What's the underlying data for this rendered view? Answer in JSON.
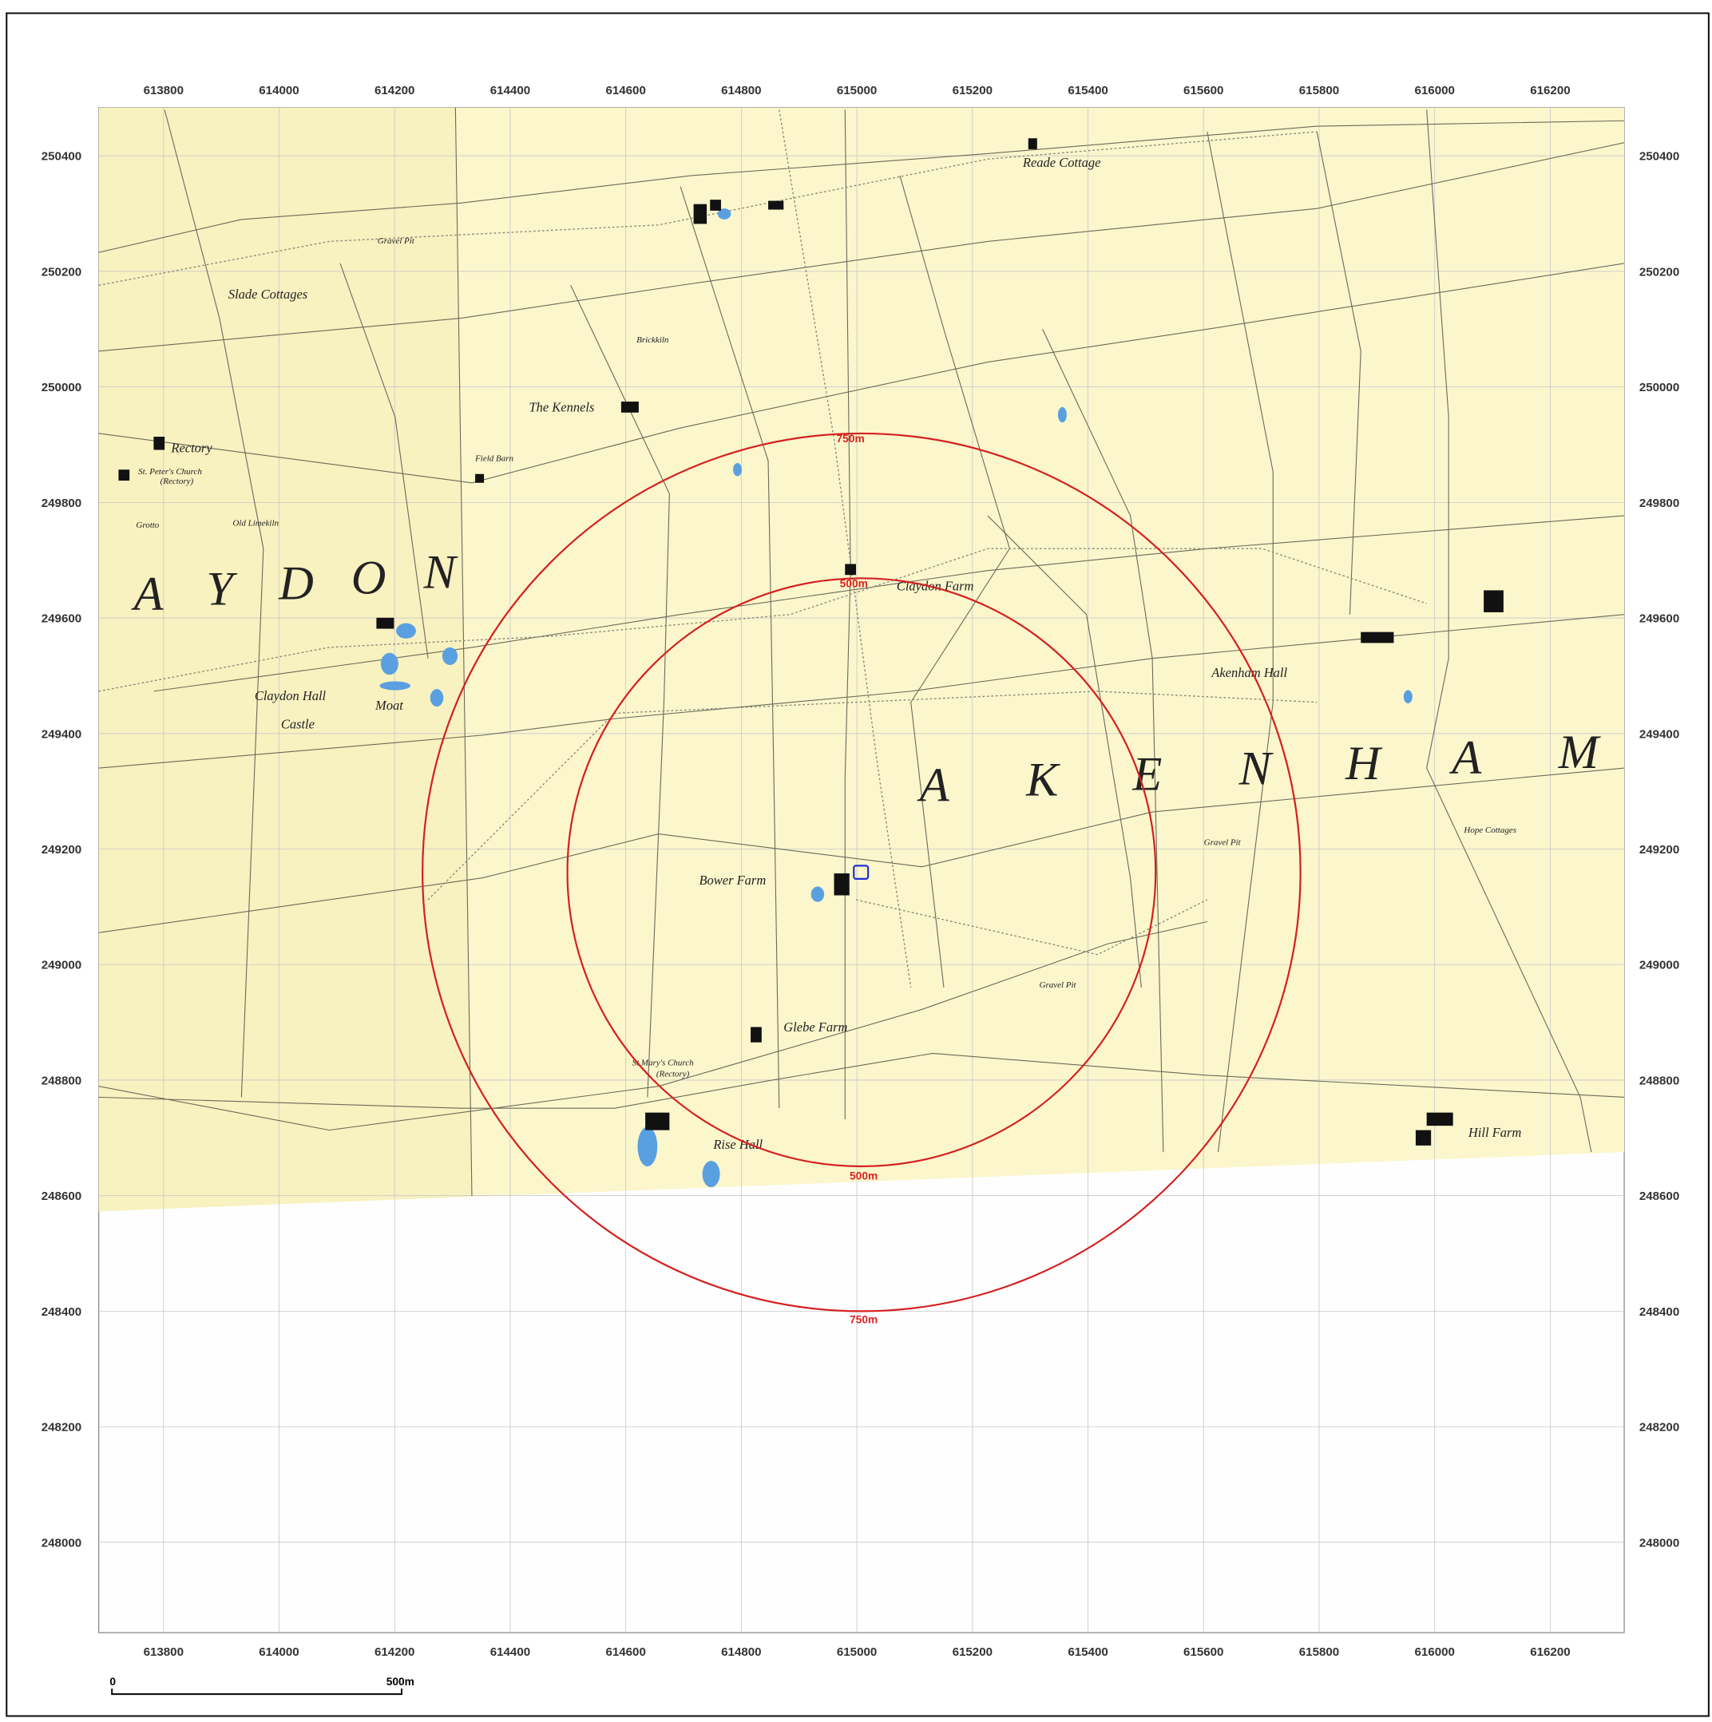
{
  "map": {
    "eastings": [
      613800,
      614000,
      614200,
      614400,
      614600,
      614800,
      615000,
      615200,
      615400,
      615600,
      615800,
      616000,
      616200
    ],
    "northings": [
      250400,
      250200,
      250000,
      249800,
      249600,
      249400,
      249200,
      249000,
      248800,
      248600,
      248400,
      248200,
      248000
    ],
    "places": [
      "Reade Cottage",
      "Slade Cottages",
      "Gravel Pit",
      "Brickkiln",
      "The Kennels",
      "Field Barn",
      "Rectory",
      "St. Peter's Church",
      "(Rectory)",
      "Old Limekiln",
      "Grotto",
      "Claydon Hall",
      "Moat",
      "Castle",
      "Claydon Farm",
      "Akenham Hall",
      "Bower Farm",
      "Glebe Farm",
      "St Mary's Church",
      "(Rectory)",
      "Rise Hall",
      "Hope Cottages",
      "Hill Farm",
      "Gravel Pit",
      "Gravel Pit"
    ],
    "parish_letters_west": [
      "A",
      "Y",
      "D",
      "O",
      "N"
    ],
    "parish_letters_east": [
      "A",
      "K",
      "E",
      "N",
      "H",
      "A",
      "M"
    ],
    "buffers": {
      "inner": "500m",
      "outer": "750m"
    },
    "scale_bar": {
      "start": "0",
      "end": "500m"
    }
  }
}
